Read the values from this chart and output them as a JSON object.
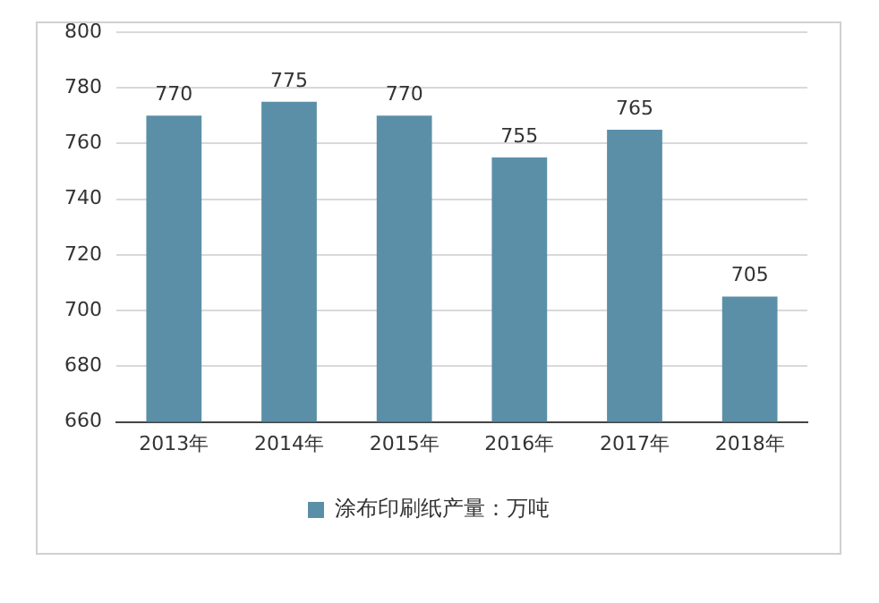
{
  "chart_data": {
    "type": "bar",
    "categories": [
      "2013年",
      "2014年",
      "2015年",
      "2016年",
      "2017年",
      "2018年"
    ],
    "series": [
      {
        "name": "涂布印刷纸产量：万吨",
        "color": "#5b8fa8",
        "values": [
          770,
          775,
          770,
          755,
          765,
          705
        ]
      }
    ],
    "ylim": [
      660,
      800
    ],
    "yticks": [
      660,
      680,
      700,
      720,
      740,
      760,
      780,
      800
    ],
    "grid": "y",
    "legend": "bottom",
    "data_labels": true
  }
}
